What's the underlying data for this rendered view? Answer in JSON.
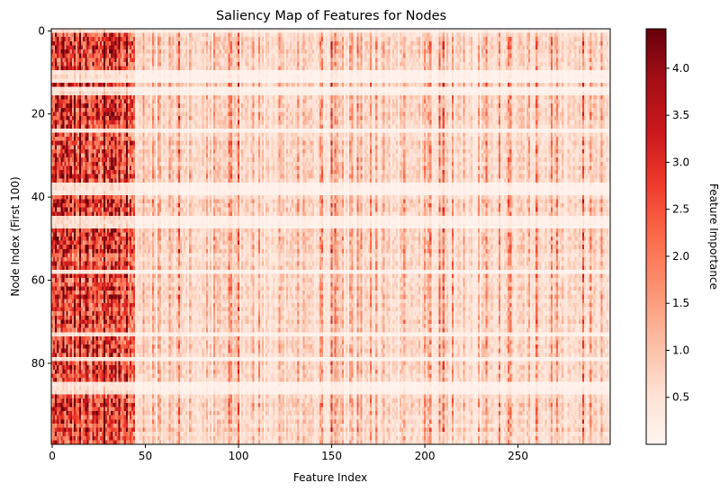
{
  "chart_data": {
    "type": "heatmap",
    "title": "Saliency Map of Features for Nodes",
    "xlabel": "Feature Index",
    "ylabel": "Node Index (First 100)",
    "colorbar_label": "Feature Importance",
    "colormap": "Reds",
    "colormap_stops": [
      "#fff5f0",
      "#fee0d2",
      "#fcbba1",
      "#fc9272",
      "#fb6a4a",
      "#ef3b2c",
      "#cb181d",
      "#a50f15",
      "#67000d"
    ],
    "x_range": [
      -0.5,
      299.5
    ],
    "y_range": [
      99.5,
      -0.5
    ],
    "n_features": 300,
    "n_nodes": 100,
    "x_ticks": [
      0,
      50,
      100,
      150,
      200,
      250
    ],
    "x_tick_labels": [
      "0",
      "50",
      "100",
      "150",
      "200",
      "250"
    ],
    "y_ticks": [
      0,
      20,
      40,
      60,
      80
    ],
    "y_tick_labels": [
      "0",
      "20",
      "40",
      "60",
      "80"
    ],
    "value_range": [
      0.0,
      4.42
    ],
    "colorbar_ticks": [
      0.5,
      1.0,
      1.5,
      2.0,
      2.5,
      3.0,
      3.5,
      4.0
    ],
    "colorbar_tick_labels": [
      "0.5",
      "1.0",
      "1.5",
      "2.0",
      "2.5",
      "3.0",
      "3.5",
      "4.0"
    ],
    "pale_node_rows": [
      0,
      10,
      11,
      12,
      14,
      15,
      24,
      37,
      38,
      39,
      45,
      46,
      47,
      58,
      73,
      79,
      85,
      86,
      87
    ],
    "strong_feature_columns": [
      2,
      5,
      8,
      12,
      15,
      18,
      22,
      28,
      32,
      36,
      40,
      68,
      95,
      100,
      150,
      152,
      208,
      210,
      215,
      240,
      260,
      285
    ]
  }
}
